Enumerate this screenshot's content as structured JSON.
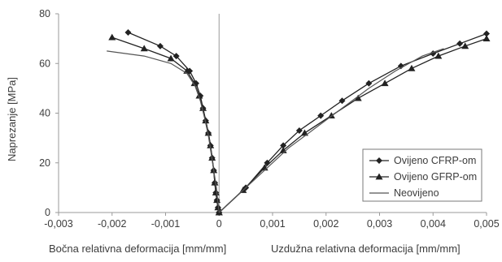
{
  "chart_data": {
    "type": "scatter",
    "ylabel": "Naprezanje [MPa]",
    "xlabel_left": "Bočna relativna deformacija [mm/mm]",
    "xlabel_right": "Uzdužna relativna deformacija [mm/mm]",
    "xlim": [
      -0.003,
      0.005
    ],
    "ylim": [
      0,
      80
    ],
    "x_ticks": [
      -0.003,
      -0.002,
      -0.001,
      0,
      0.001,
      0.002,
      0.003,
      0.004,
      0.005
    ],
    "x_tick_labels": [
      "-0,003",
      "-0,002",
      "-0,001",
      "0",
      "0,001",
      "0,002",
      "0,003",
      "0,004",
      "0,005"
    ],
    "y_ticks": [
      0,
      20,
      40,
      60,
      80
    ],
    "y_tick_labels": [
      "0",
      "20",
      "40",
      "60",
      "80"
    ],
    "grid": false,
    "legend_position": "bottom-right",
    "series": [
      {
        "name": "Ovijeno CFRP-om",
        "marker": "diamond",
        "color": "#222222",
        "lateral": [
          [
            0,
            0
          ],
          [
            -2e-05,
            2
          ],
          [
            -4e-05,
            5
          ],
          [
            -6e-05,
            8
          ],
          [
            -8e-05,
            12
          ],
          [
            -0.0001,
            17
          ],
          [
            -0.00013,
            22
          ],
          [
            -0.00016,
            27
          ],
          [
            -0.0002,
            32
          ],
          [
            -0.00025,
            37
          ],
          [
            -0.0003,
            42
          ],
          [
            -0.00035,
            47
          ],
          [
            -0.00043,
            52
          ],
          [
            -0.00055,
            57
          ],
          [
            -0.0008,
            63
          ],
          [
            -0.0011,
            67
          ],
          [
            -0.0017,
            72.5
          ]
        ],
        "axial": [
          [
            0,
            0
          ],
          [
            0.0005,
            10
          ],
          [
            0.0009,
            20
          ],
          [
            0.0012,
            27
          ],
          [
            0.0015,
            33
          ],
          [
            0.0019,
            39
          ],
          [
            0.0023,
            45
          ],
          [
            0.0028,
            52
          ],
          [
            0.0034,
            59
          ],
          [
            0.004,
            64
          ],
          [
            0.0045,
            68
          ],
          [
            0.005,
            72
          ]
        ]
      },
      {
        "name": "Ovijeno GFRP-om",
        "marker": "triangle",
        "color": "#222222",
        "lateral": [
          [
            0,
            0
          ],
          [
            -2e-05,
            2
          ],
          [
            -4e-05,
            5
          ],
          [
            -6e-05,
            8
          ],
          [
            -8e-05,
            12
          ],
          [
            -0.0001,
            17
          ],
          [
            -0.00013,
            22
          ],
          [
            -0.00016,
            27
          ],
          [
            -0.0002,
            32
          ],
          [
            -0.00025,
            37
          ],
          [
            -0.0003,
            42
          ],
          [
            -0.00037,
            47
          ],
          [
            -0.00046,
            52
          ],
          [
            -0.0006,
            57
          ],
          [
            -0.0009,
            62
          ],
          [
            -0.0014,
            66
          ],
          [
            -0.002,
            70.5
          ]
        ],
        "axial": [
          [
            0,
            0
          ],
          [
            0.00045,
            9
          ],
          [
            0.00085,
            18
          ],
          [
            0.0012,
            25
          ],
          [
            0.0016,
            32
          ],
          [
            0.0021,
            39
          ],
          [
            0.0026,
            46
          ],
          [
            0.0031,
            52
          ],
          [
            0.0036,
            58
          ],
          [
            0.0041,
            63
          ],
          [
            0.0046,
            67
          ],
          [
            0.005,
            70
          ]
        ]
      },
      {
        "name": "Neovijeno",
        "marker": "none",
        "color": "#555555",
        "lateral": [
          [
            0,
            0
          ],
          [
            -2e-05,
            4
          ],
          [
            -5e-05,
            10
          ],
          [
            -0.0001,
            17
          ],
          [
            -0.00015,
            24
          ],
          [
            -0.0002,
            31
          ],
          [
            -0.00027,
            38
          ],
          [
            -0.00035,
            45
          ],
          [
            -0.00045,
            51
          ],
          [
            -0.0006,
            56
          ],
          [
            -0.0009,
            60
          ],
          [
            -0.0014,
            63
          ],
          [
            -0.0021,
            65
          ]
        ],
        "axial": [
          [
            0,
            0
          ],
          [
            0.0005,
            10
          ],
          [
            0.0009,
            18
          ],
          [
            0.0013,
            26
          ],
          [
            0.0018,
            34
          ],
          [
            0.0023,
            42
          ],
          [
            0.0028,
            50
          ],
          [
            0.0033,
            57
          ],
          [
            0.0038,
            63
          ],
          [
            0.0042,
            66
          ]
        ]
      }
    ]
  }
}
